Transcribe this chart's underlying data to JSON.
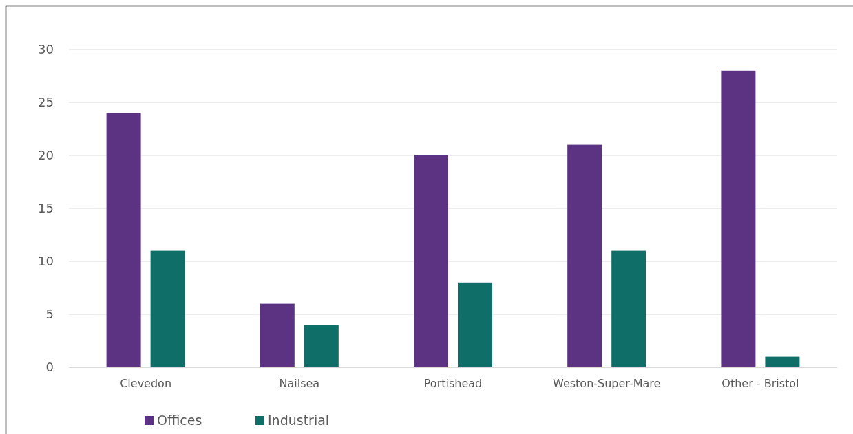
{
  "chart_data": {
    "type": "bar",
    "categories": [
      "Clevedon",
      "Nailsea",
      "Portishead",
      "Weston-Super-Mare",
      "Other - Bristol"
    ],
    "series": [
      {
        "name": "Offices",
        "color": "#5c3282",
        "values": [
          24,
          6,
          20,
          21,
          28
        ]
      },
      {
        "name": "Industrial",
        "color": "#0f6e68",
        "values": [
          11,
          4,
          8,
          11,
          1
        ]
      }
    ],
    "ylim": [
      0,
      30
    ],
    "yticks": [
      0,
      5,
      10,
      15,
      20,
      25,
      30
    ],
    "grid": "y",
    "legend": "bottom"
  }
}
